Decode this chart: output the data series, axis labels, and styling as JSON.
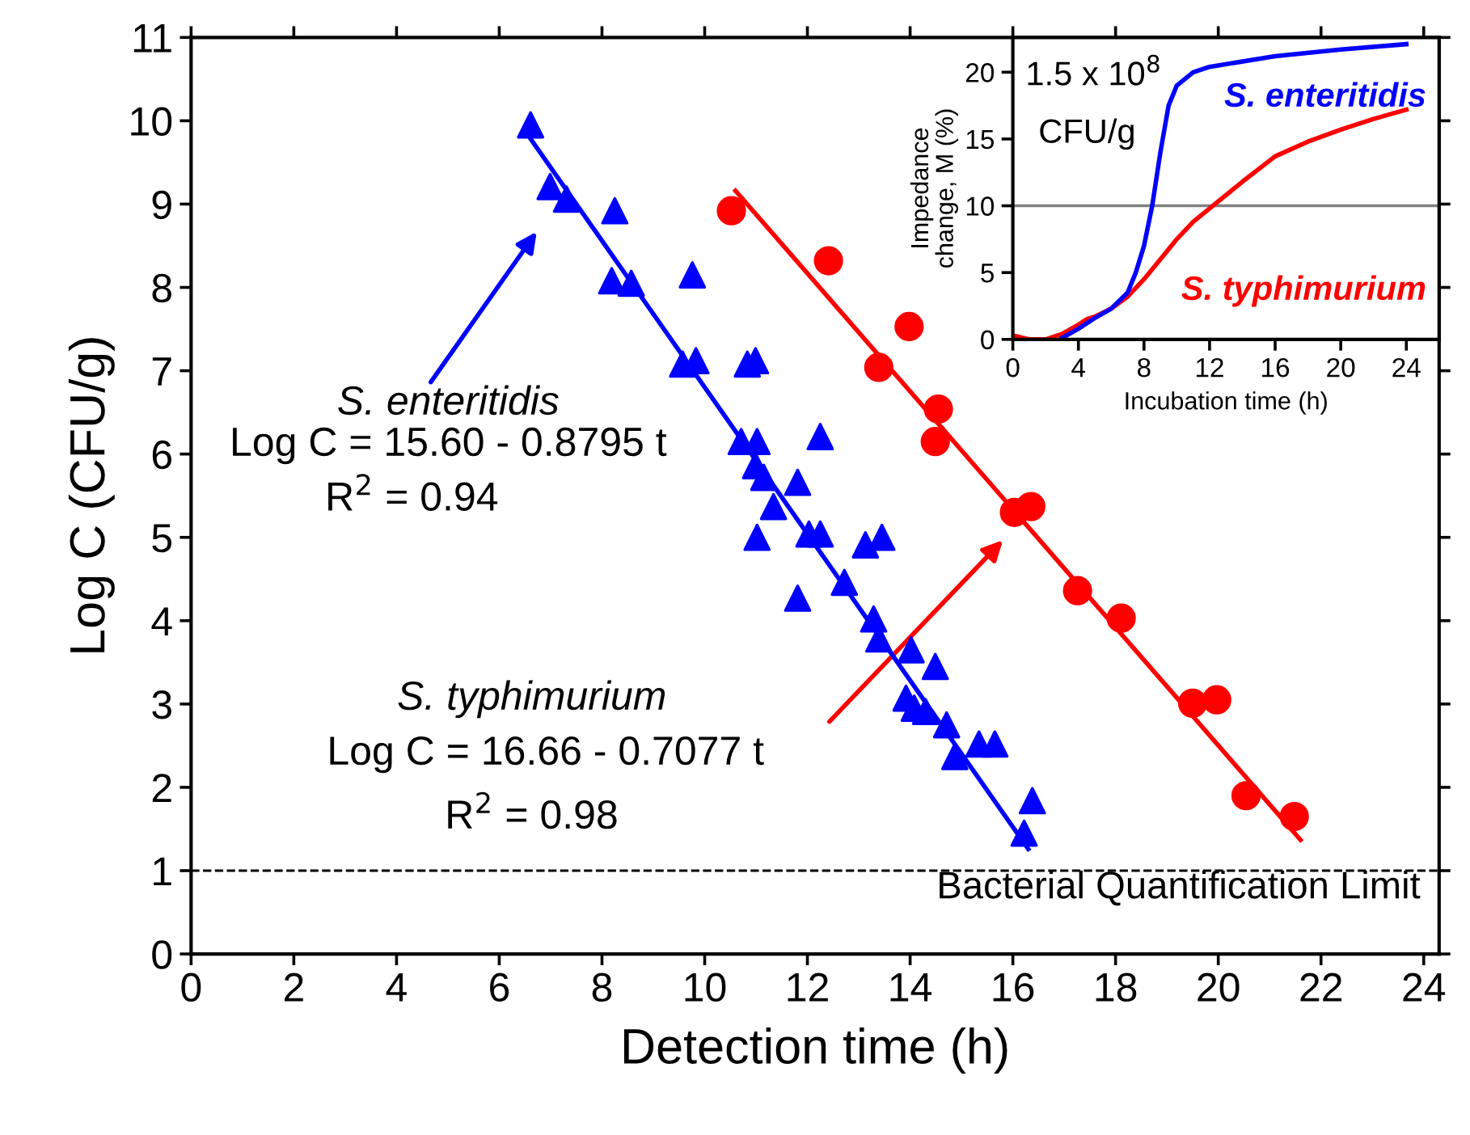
{
  "chart_data": [
    {
      "type": "scatter",
      "xlabel": "Detection time (h)",
      "ylabel": "Log C (CFU/g)",
      "xlim": [
        0,
        24.3
      ],
      "ylim": [
        0,
        11
      ],
      "xticks": [
        0,
        2,
        4,
        6,
        8,
        10,
        12,
        14,
        16,
        18,
        20,
        22,
        24
      ],
      "yticks": [
        0,
        1,
        2,
        3,
        4,
        5,
        6,
        7,
        8,
        9,
        10,
        11
      ],
      "grid": false,
      "legend": false,
      "series": [
        {
          "color": "#0000ff",
          "marker": "triangle",
          "x": [
            6.61,
            6.99,
            7.31,
            8.25,
            8.19,
            8.57,
            9.76,
            9.57,
            9.83,
            10.83,
            10.99,
            10.71,
            11.02,
            12.25,
            10.99,
            11.15,
            11.81,
            11.34,
            11.02,
            12.03,
            12.25,
            13.13,
            13.45,
            11.81,
            12.72,
            13.29,
            13.39,
            14.02,
            14.49,
            13.92,
            14.08,
            14.3,
            14.71,
            14.87,
            15.34,
            15.65,
            16.38,
            16.22
          ],
          "values": [
            9.95,
            9.21,
            9.06,
            8.92,
            8.08,
            8.05,
            8.15,
            7.08,
            7.12,
            7.08,
            7.12,
            6.15,
            6.15,
            6.21,
            5.86,
            5.72,
            5.66,
            5.37,
            5.0,
            5.04,
            5.04,
            4.91,
            5.0,
            4.27,
            4.46,
            4.02,
            3.78,
            3.65,
            3.45,
            3.07,
            2.95,
            2.91,
            2.75,
            2.37,
            2.52,
            2.52,
            1.84,
            1.45
          ]
        },
        {
          "color": "#ff0000",
          "marker": "circle",
          "x": [
            10.52,
            12.41,
            13.98,
            13.39,
            14.55,
            14.49,
            16.03,
            16.35,
            17.26,
            18.11,
            19.5,
            19.97,
            20.54,
            21.48
          ],
          "values": [
            8.92,
            8.32,
            7.53,
            7.04,
            6.54,
            6.15,
            5.3,
            5.37,
            4.36,
            4.03,
            3.01,
            3.05,
            1.9,
            1.65
          ]
        },
        {
          "type": "line",
          "color": "#0000ff",
          "marker": "none",
          "x": [
            6.5,
            16.3
          ],
          "values": [
            9.88,
            1.26
          ]
        },
        {
          "type": "line",
          "color": "#ff0000",
          "marker": "none",
          "x": [
            10.6,
            21.6
          ],
          "values": [
            9.16,
            1.37
          ]
        }
      ],
      "ref_lines": [
        {
          "axis": "y",
          "value": 1,
          "label": "Bacterial Quantification Limit",
          "color": "#000000",
          "line_style": "dashed"
        }
      ],
      "annotations": [
        "S. enteritidis",
        "Log C = 15.60 - 0.8795 t",
        "R$^{2}$ = 0.94",
        "S. typhimurium",
        "Log C = 16.66 - 0.7077 t",
        "R$^{2}$ = 0.98"
      ]
    },
    {
      "type": "line",
      "xlabel": "Incubation time (h)",
      "ylabel": "Impedance\nchange, M (%)",
      "xlim": [
        0,
        26
      ],
      "ylim": [
        0,
        22.6
      ],
      "xticks": [
        0,
        4,
        8,
        12,
        16,
        20,
        24
      ],
      "yticks": [
        0,
        5,
        10,
        15,
        20
      ],
      "grid": false,
      "legend": false,
      "series": [
        {
          "name": "S. enteritidis",
          "color": "#0000ff",
          "x": [
            3,
            4,
            5,
            6,
            7,
            7.5,
            8,
            8.5,
            9,
            9.5,
            10,
            11,
            12,
            16,
            20,
            24
          ],
          "values": [
            0.1,
            0.8,
            1.6,
            2.3,
            3.5,
            5,
            7,
            10,
            14,
            17.5,
            19,
            20,
            20.4,
            21.2,
            21.7,
            22.1
          ]
        },
        {
          "name": "S. typhimurium",
          "color": "#ff0000",
          "x": [
            0,
            1,
            2,
            3,
            4,
            4.5,
            5,
            6,
            7,
            8,
            9,
            10,
            11,
            12,
            14,
            16,
            18,
            20,
            22,
            24
          ],
          "values": [
            0.3,
            0,
            0,
            0.4,
            1.1,
            1.5,
            1.7,
            2.3,
            3.2,
            4.5,
            6,
            7.5,
            8.8,
            9.8,
            11.8,
            13.7,
            14.8,
            15.7,
            16.5,
            17.2
          ]
        }
      ],
      "ref_lines": [
        {
          "axis": "y",
          "value": 10,
          "color": "#808080",
          "line_style": "solid"
        }
      ],
      "annotations": [
        "1.5 x 10$^{8}$",
        "CFU/g"
      ]
    }
  ]
}
